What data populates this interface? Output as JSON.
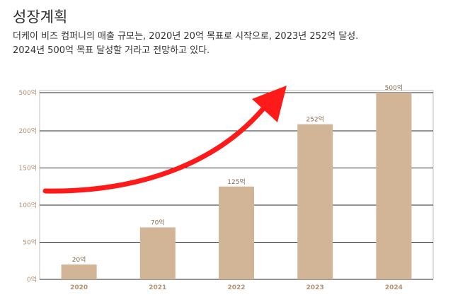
{
  "header": {
    "title": "성장계획",
    "desc_line1": "더케이 비즈 컴퍼니의 매출 규모는, 2020년 20억 목표로 시작으로, 2023년 252억 달성.",
    "desc_line2": "2024년 500억 목표 달성할 거라고 전망하고 있다."
  },
  "chart_data": {
    "type": "bar",
    "categories": [
      "2020",
      "2021",
      "2022",
      "2023",
      "2024"
    ],
    "values": [
      20,
      70,
      125,
      252,
      500
    ],
    "data_labels": [
      "20억",
      "70억",
      "125억",
      "252억",
      "500억"
    ],
    "y_ticks": [
      0,
      50,
      100,
      150,
      200,
      500
    ],
    "y_tick_labels": [
      "0억",
      "50억",
      "100억",
      "150억",
      "200억",
      "500억"
    ],
    "axis_break": true,
    "grid": true,
    "title": "",
    "xlabel": "",
    "ylabel": "",
    "colors": {
      "bar": "#d2b496",
      "grid": "#2a2a2a",
      "tick": "#b59072",
      "arrow": "#ff1a1a"
    },
    "annotation": "red-upward-trend-arrow"
  }
}
